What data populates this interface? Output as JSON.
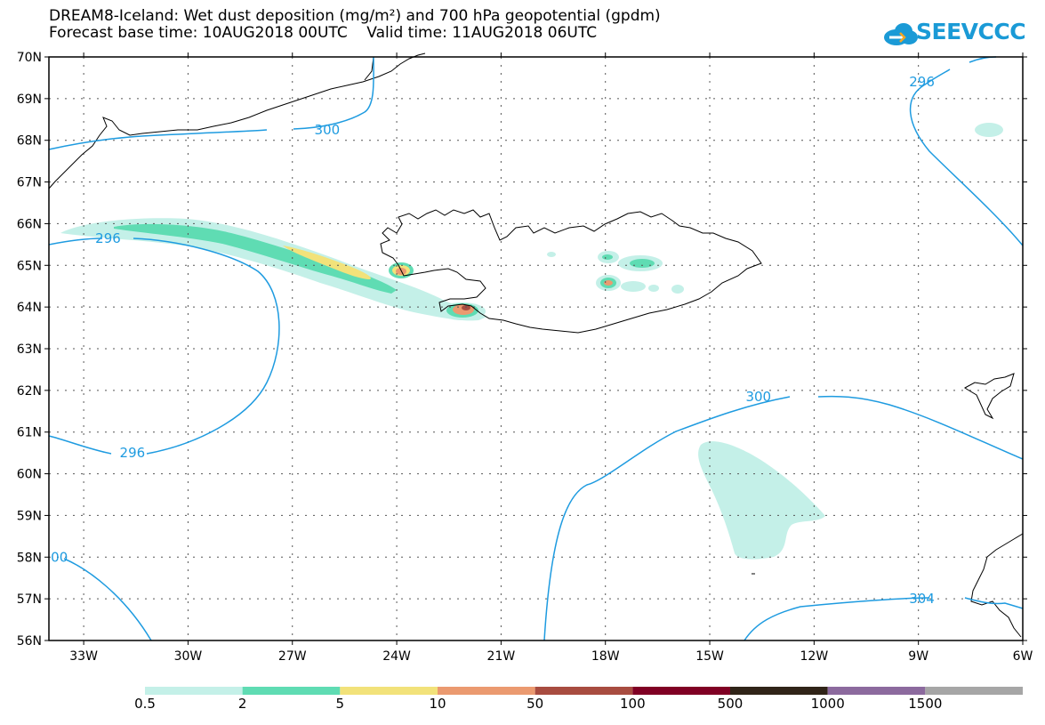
{
  "header": {
    "title_line1": "DREAM8-Iceland: Wet dust deposition (mg/m²) and 700 hPa geopotential (gpdm)",
    "title_line2": "Forecast base time: 10AUG2018 00UTC    Valid time: 11AUG2018 06UTC",
    "logo_text": "SEEVCCC"
  },
  "map": {
    "lon_range": [
      -34,
      -6
    ],
    "lat_range": [
      56,
      70
    ],
    "lat_ticks": [
      {
        "value": 70,
        "label": "70N"
      },
      {
        "value": 69,
        "label": "69N"
      },
      {
        "value": 68,
        "label": "68N"
      },
      {
        "value": 67,
        "label": "67N"
      },
      {
        "value": 66,
        "label": "66N"
      },
      {
        "value": 65,
        "label": "65N"
      },
      {
        "value": 64,
        "label": "64N"
      },
      {
        "value": 63,
        "label": "63N"
      },
      {
        "value": 62,
        "label": "62N"
      },
      {
        "value": 61,
        "label": "61N"
      },
      {
        "value": 60,
        "label": "60N"
      },
      {
        "value": 59,
        "label": "59N"
      },
      {
        "value": 58,
        "label": "58N"
      },
      {
        "value": 57,
        "label": "57N"
      },
      {
        "value": 56,
        "label": "56N"
      }
    ],
    "lon_ticks": [
      {
        "value": -33,
        "label": "33W"
      },
      {
        "value": -30,
        "label": "30W"
      },
      {
        "value": -27,
        "label": "27W"
      },
      {
        "value": -24,
        "label": "24W"
      },
      {
        "value": -21,
        "label": "21W"
      },
      {
        "value": -18,
        "label": "18W"
      },
      {
        "value": -15,
        "label": "15W"
      },
      {
        "value": -12,
        "label": "12W"
      },
      {
        "value": -9,
        "label": "9W"
      },
      {
        "value": -6,
        "label": "6W"
      }
    ],
    "contour_color": "#1e9be0",
    "contour_labels": [
      {
        "text": "296",
        "lon": -8.9,
        "lat": 69.4
      },
      {
        "text": "300",
        "lon": -26.0,
        "lat": 68.25
      },
      {
        "text": "296",
        "lon": -32.3,
        "lat": 65.65
      },
      {
        "text": "296",
        "lon": -31.6,
        "lat": 60.5
      },
      {
        "text": "300",
        "lon": -13.6,
        "lat": 61.85
      },
      {
        "text": "304",
        "lon": -8.9,
        "lat": 57.0
      },
      {
        "text": "00",
        "lon": -33.7,
        "lat": 58.0
      }
    ]
  },
  "legend": {
    "colors": [
      "#c4f0e8",
      "#5fdcb3",
      "#f2e27a",
      "#eb9a70",
      "#a84c40",
      "#800024",
      "#302418",
      "#8c6a9e",
      "#a6a6a6"
    ],
    "labels": [
      "0.5",
      "2",
      "5",
      "10",
      "50",
      "100",
      "500",
      "1000",
      "1500"
    ]
  }
}
